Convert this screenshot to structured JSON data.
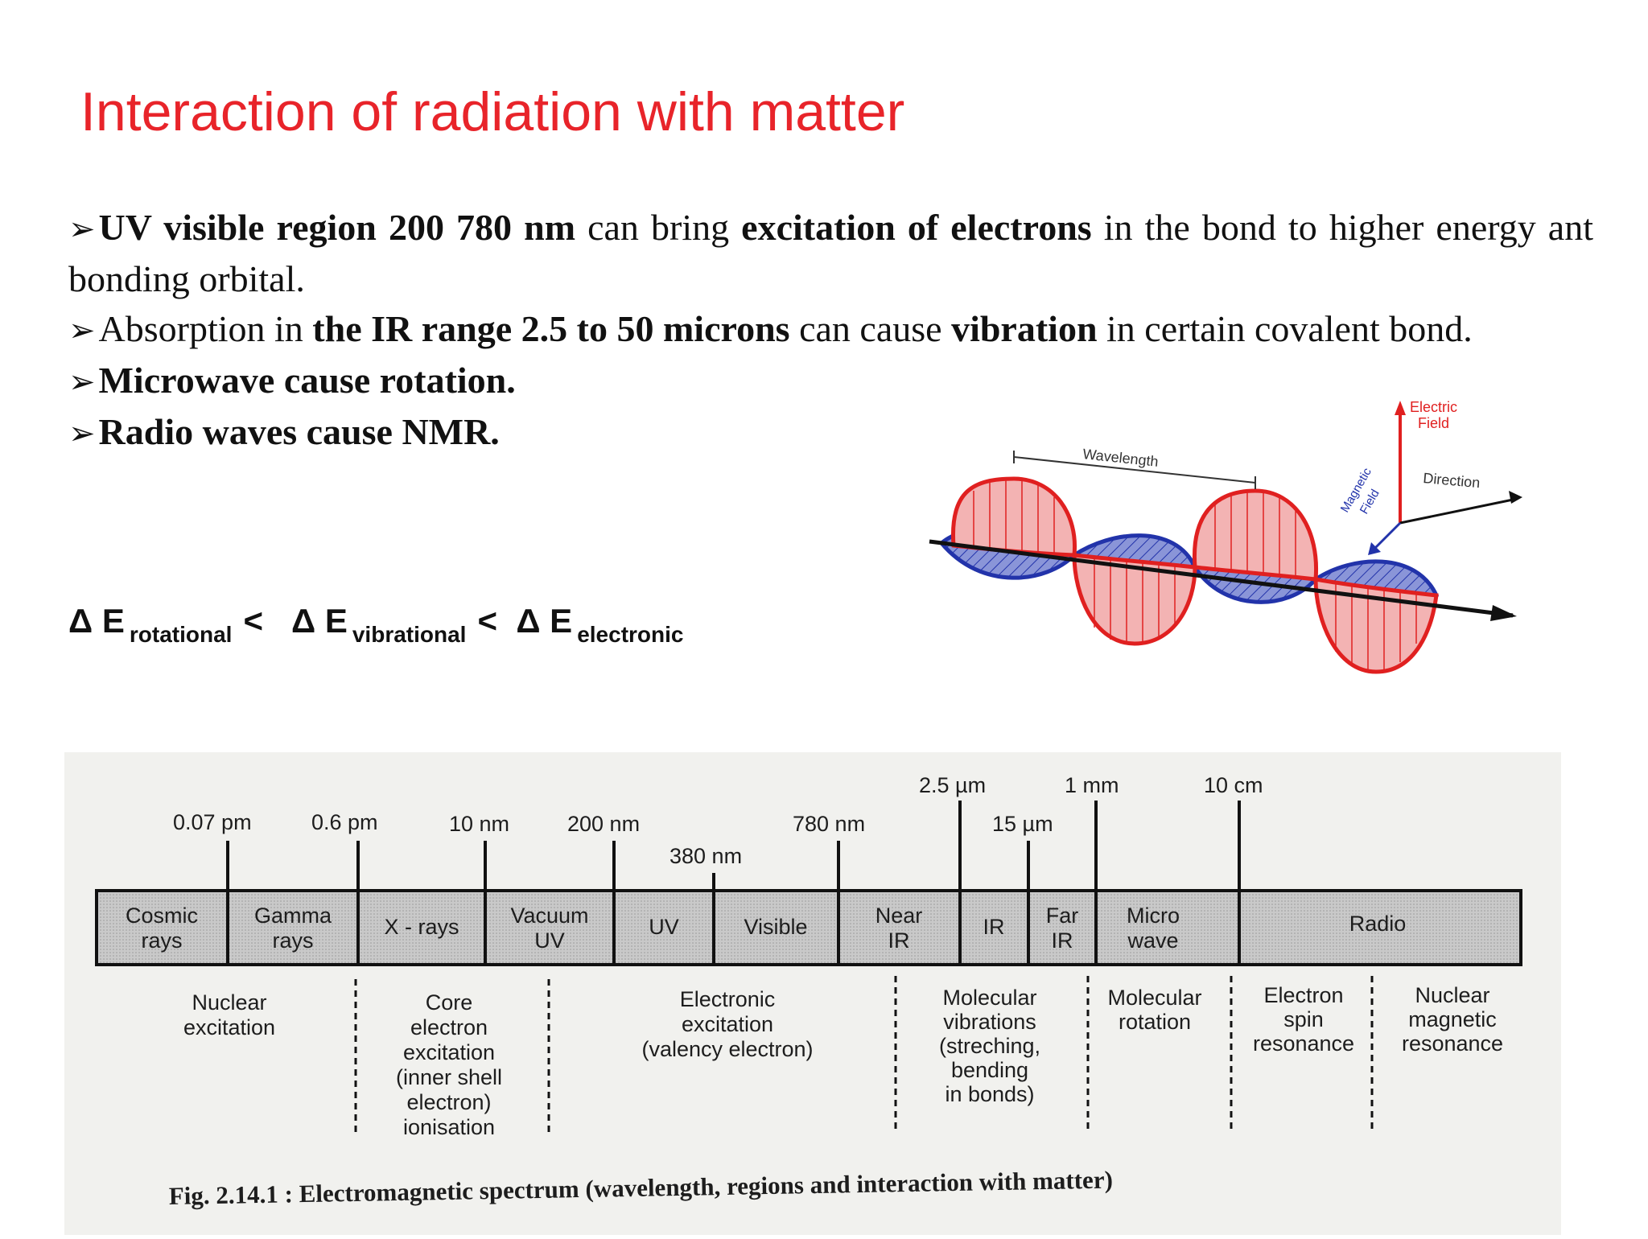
{
  "title": "Interaction of radiation with matter",
  "bullets": {
    "b1": {
      "bold1": "UV visible region 200 780 nm",
      "t1": " can bring ",
      "bold2": "excitation of electrons",
      "t2": " in the bond to higher energy ant bonding orbital."
    },
    "b2": {
      "t0": "Absorption in ",
      "bold1": "the IR range 2.5 to 50 microns",
      "t1": " can cause ",
      "bold2": "vibration",
      "t2": " in certain covalent bond."
    },
    "b3": {
      "bold1": "Microwave cause rotation."
    },
    "b4": {
      "bold1": "Radio waves cause NMR."
    }
  },
  "energy": {
    "d1": "Δ E",
    "s1": "rotational",
    "lt1": "<",
    "d2": "Δ E",
    "s2": "vibrational",
    "lt2": "<",
    "d3": "Δ E",
    "s3": "electronic"
  },
  "wave": {
    "wavelength": "Wavelength",
    "electric1": "Electric",
    "electric2": "Field",
    "direction": "Direction",
    "magnetic1": "Magnetic",
    "magnetic2": "Field"
  },
  "spectrum": {
    "wavelength_labels": [
      "0.07 pm",
      "0.6 pm",
      "10 nm",
      "200 nm",
      "380 nm",
      "780 nm",
      "2.5 µm",
      "15 µm",
      "1 mm",
      "10 cm"
    ],
    "regions": [
      {
        "l1": "Cosmic",
        "l2": "rays"
      },
      {
        "l1": "Gamma",
        "l2": "rays"
      },
      {
        "l1": "X - rays",
        "l2": ""
      },
      {
        "l1": "Vacuum",
        "l2": "UV"
      },
      {
        "l1": "UV",
        "l2": ""
      },
      {
        "l1": "Visible",
        "l2": ""
      },
      {
        "l1": "Near",
        "l2": "IR"
      },
      {
        "l1": "IR",
        "l2": ""
      },
      {
        "l1": "Far",
        "l2": "IR"
      },
      {
        "l1": "Micro",
        "l2": "wave"
      },
      {
        "l1": "Radio",
        "l2": ""
      }
    ],
    "interactions": [
      [
        "Nuclear",
        "excitation"
      ],
      [
        "Core",
        "electron",
        "excitation",
        "(inner shell",
        "electron)",
        "ionisation"
      ],
      [
        "Electronic",
        "excitation",
        "(valency electron)"
      ],
      [
        "Molecular",
        "vibrations",
        "(streching,",
        "bending",
        "in bonds)"
      ],
      [
        "Molecular",
        "rotation"
      ],
      [
        "Electron",
        "spin",
        "resonance"
      ],
      [
        "Nuclear",
        "magnetic",
        "resonance"
      ]
    ],
    "caption": "Fig. 2.14.1 : Electromagnetic spectrum (wavelength, regions and interaction with matter)"
  },
  "colors": {
    "title": "#e8242a",
    "wave_red": "#e02020",
    "wave_blue": "#2233aa",
    "wave_blue_fill": "#8a95d8",
    "wave_red_fill": "#f3b3b3",
    "bar": "#bdbdbd"
  }
}
